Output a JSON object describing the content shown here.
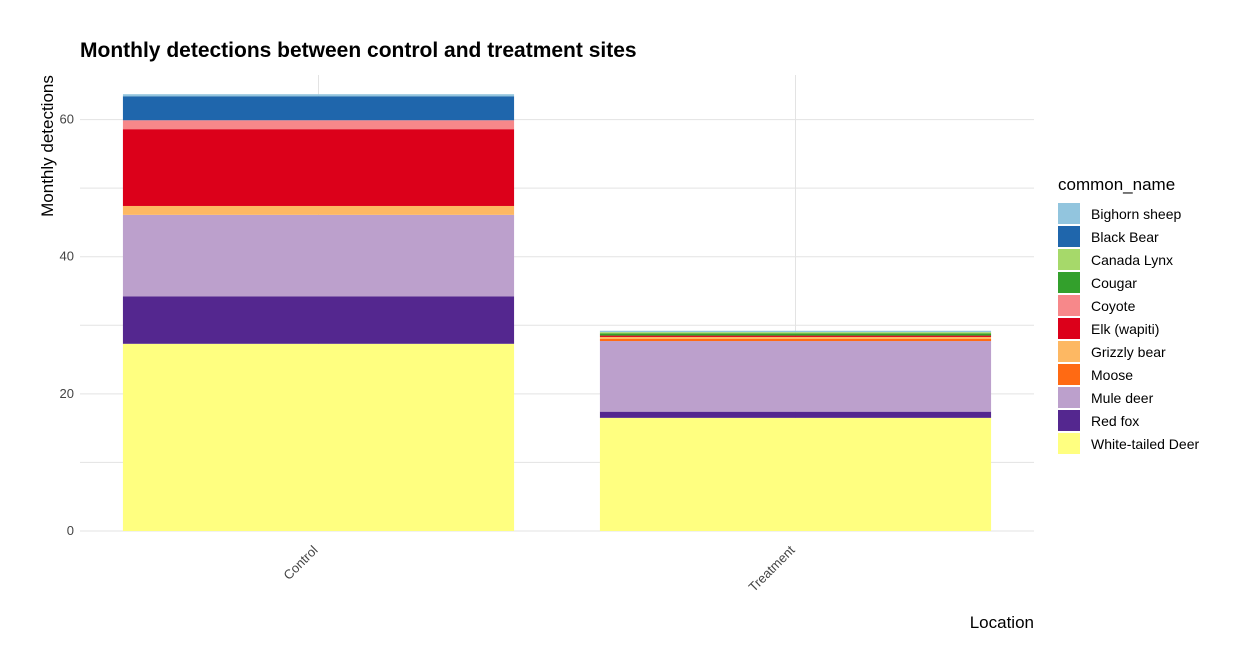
{
  "chart_data": {
    "type": "bar",
    "stacked": true,
    "title": "Monthly detections between control and treatment sites",
    "xlabel": "Location",
    "ylabel": "Monthly detections",
    "categories": [
      "Control",
      "Treatment"
    ],
    "ylim": [
      0,
      66.5
    ],
    "y_ticks": [
      0,
      20,
      40,
      60
    ],
    "grid": true,
    "legend_title": "common_name",
    "legend_position": "right",
    "series": [
      {
        "name": "White-tailed Deer",
        "color": "#FFFF80",
        "values": [
          27.3,
          16.5
        ]
      },
      {
        "name": "Red fox",
        "color": "#54278F",
        "values": [
          6.9,
          0.9
        ]
      },
      {
        "name": "Mule deer",
        "color": "#BCA0CC",
        "values": [
          11.9,
          10.3
        ]
      },
      {
        "name": "Moose",
        "color": "#FF6A13",
        "values": [
          0,
          0.3
        ]
      },
      {
        "name": "Grizzly bear",
        "color": "#FDB863",
        "values": [
          1.3,
          0.3
        ]
      },
      {
        "name": "Elk (wapiti)",
        "color": "#DC001A",
        "values": [
          11.2,
          0.2
        ]
      },
      {
        "name": "Coyote",
        "color": "#F7888A",
        "values": [
          1.3,
          0
        ]
      },
      {
        "name": "Cougar",
        "color": "#33A02C",
        "values": [
          0,
          0.3
        ]
      },
      {
        "name": "Canada Lynx",
        "color": "#A6D96A",
        "values": [
          0,
          0.2
        ]
      },
      {
        "name": "Black Bear",
        "color": "#1F66AC",
        "values": [
          3.5,
          0
        ]
      },
      {
        "name": "Bighorn sheep",
        "color": "#92C5DE",
        "values": [
          0.3,
          0.2
        ]
      }
    ],
    "legend_order": [
      "Bighorn sheep",
      "Black Bear",
      "Canada Lynx",
      "Cougar",
      "Coyote",
      "Elk (wapiti)",
      "Grizzly bear",
      "Moose",
      "Mule deer",
      "Red fox",
      "White-tailed Deer"
    ]
  }
}
